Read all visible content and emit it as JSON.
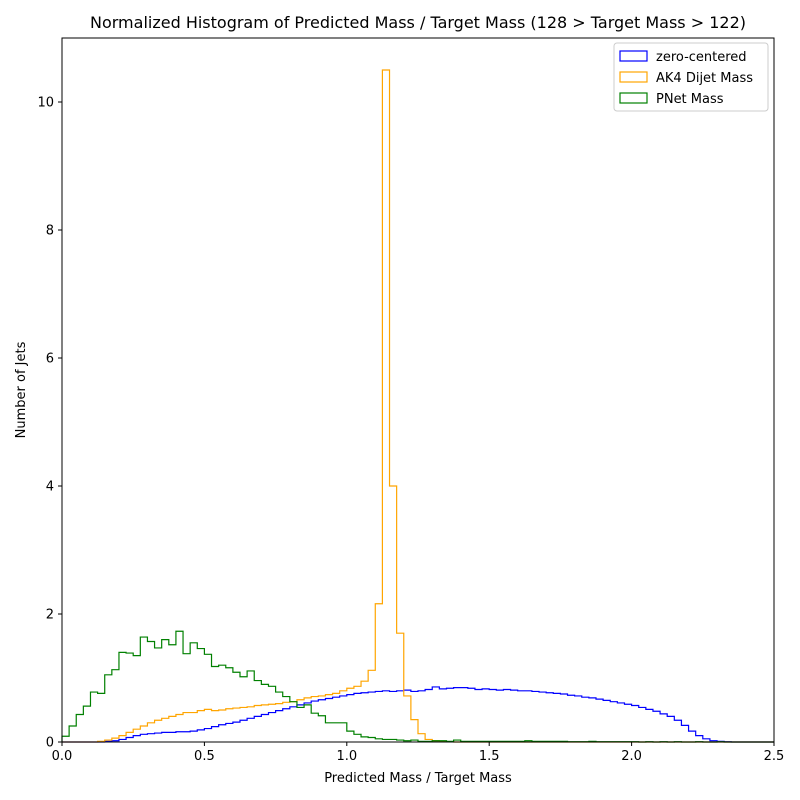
{
  "chart_data": {
    "type": "histogram-step",
    "title": "Normalized Histogram of Predicted Mass / Target Mass (128 > Target Mass > 122)",
    "xlabel": "Predicted Mass / Target Mass",
    "ylabel": "Number of Jets",
    "xlim": [
      0,
      2.5
    ],
    "ylim": [
      0,
      11
    ],
    "xticks": [
      0,
      0.5,
      1.0,
      1.5,
      2.0,
      2.5
    ],
    "xtick_labels": [
      "0.0",
      "0.5",
      "1.0",
      "1.5",
      "2.0",
      "2.5"
    ],
    "yticks": [
      0,
      2,
      4,
      6,
      8,
      10
    ],
    "ytick_labels": [
      "0",
      "2",
      "4",
      "6",
      "8",
      "10"
    ],
    "grid": false,
    "legend_position": "top-right",
    "bin_start": 0,
    "bin_width": 0.025,
    "series": [
      {
        "name": "zero-centered",
        "color": "#0000ff",
        "values": [
          0,
          0,
          0,
          0,
          0,
          0,
          0.01,
          0.02,
          0.04,
          0.07,
          0.1,
          0.12,
          0.13,
          0.14,
          0.15,
          0.15,
          0.16,
          0.16,
          0.17,
          0.19,
          0.21,
          0.24,
          0.27,
          0.29,
          0.31,
          0.34,
          0.37,
          0.4,
          0.43,
          0.46,
          0.49,
          0.52,
          0.55,
          0.58,
          0.61,
          0.64,
          0.66,
          0.68,
          0.7,
          0.72,
          0.74,
          0.76,
          0.77,
          0.78,
          0.79,
          0.8,
          0.79,
          0.8,
          0.81,
          0.79,
          0.8,
          0.82,
          0.86,
          0.83,
          0.84,
          0.85,
          0.85,
          0.84,
          0.82,
          0.83,
          0.82,
          0.81,
          0.82,
          0.81,
          0.8,
          0.8,
          0.79,
          0.78,
          0.77,
          0.76,
          0.75,
          0.73,
          0.72,
          0.7,
          0.69,
          0.67,
          0.65,
          0.63,
          0.61,
          0.59,
          0.57,
          0.54,
          0.51,
          0.48,
          0.44,
          0.4,
          0.34,
          0.26,
          0.17,
          0.1,
          0.05,
          0.02,
          0.01,
          0.005,
          0,
          0,
          0,
          0,
          0,
          0
        ]
      },
      {
        "name": "AK4 Dijet Mass",
        "color": "#ffa500",
        "values": [
          0,
          0,
          0,
          0,
          0,
          0.01,
          0.03,
          0.06,
          0.1,
          0.15,
          0.2,
          0.25,
          0.3,
          0.34,
          0.37,
          0.4,
          0.43,
          0.46,
          0.46,
          0.49,
          0.51,
          0.49,
          0.5,
          0.52,
          0.53,
          0.54,
          0.55,
          0.57,
          0.58,
          0.59,
          0.6,
          0.62,
          0.63,
          0.66,
          0.69,
          0.71,
          0.72,
          0.74,
          0.76,
          0.8,
          0.84,
          0.87,
          0.95,
          1.12,
          2.16,
          10.5,
          4.0,
          1.7,
          0.72,
          0.35,
          0.13,
          0.04,
          0.02,
          0.01,
          0.005,
          0,
          0,
          0,
          0,
          0,
          0,
          0,
          0,
          0,
          0,
          0,
          0,
          0,
          0,
          0,
          0,
          0,
          0,
          0,
          0,
          0,
          0,
          0,
          0,
          0,
          0,
          0,
          0,
          0,
          0,
          0,
          0,
          0,
          0,
          0,
          0,
          0,
          0,
          0,
          0,
          0,
          0,
          0,
          0,
          0
        ]
      },
      {
        "name": "PNet Mass",
        "color": "#008000",
        "values": [
          0.09,
          0.25,
          0.43,
          0.56,
          0.78,
          0.76,
          1.05,
          1.13,
          1.4,
          1.39,
          1.35,
          1.64,
          1.57,
          1.47,
          1.6,
          1.52,
          1.73,
          1.38,
          1.55,
          1.46,
          1.37,
          1.18,
          1.2,
          1.16,
          1.09,
          1.02,
          1.11,
          0.96,
          0.9,
          0.87,
          0.78,
          0.71,
          0.63,
          0.54,
          0.58,
          0.45,
          0.41,
          0.3,
          0.3,
          0.3,
          0.17,
          0.12,
          0.08,
          0.07,
          0.05,
          0.04,
          0.04,
          0.03,
          0.02,
          0.03,
          0.01,
          0.01,
          0.02,
          0.02,
          0.01,
          0.03,
          0.01,
          0.01,
          0.01,
          0.01,
          0.01,
          0.01,
          0.01,
          0.01,
          0.01,
          0.02,
          0.01,
          0.01,
          0.01,
          0.01,
          0.01,
          0.005,
          0.005,
          0.005,
          0.01,
          0.005,
          0.005,
          0.005,
          0.005,
          0.005,
          0.005,
          0,
          0.005,
          0,
          0.005,
          0,
          0.005,
          0,
          0,
          0.005,
          0,
          0,
          0.005,
          0,
          0,
          0,
          0,
          0,
          0,
          0
        ]
      }
    ]
  }
}
